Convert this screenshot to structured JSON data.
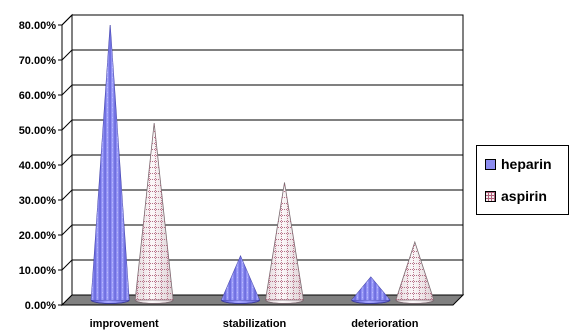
{
  "chart_data": {
    "type": "bar",
    "style": "3d-cone",
    "categories": [
      "improvement",
      "stabilization",
      "deterioration"
    ],
    "series": [
      {
        "name": "heparin",
        "values": [
          0.78,
          0.12,
          0.06
        ],
        "color": "#8c8cf0"
      },
      {
        "name": "aspirin",
        "values": [
          0.5,
          0.33,
          0.16
        ],
        "color": "#f2eaee",
        "pattern": "dotted-grid",
        "pattern_color": "#b0607a"
      }
    ],
    "y_ticks": [
      "0.00%",
      "10.00%",
      "20.00%",
      "30.00%",
      "40.00%",
      "50.00%",
      "60.00%",
      "70.00%",
      "80.00%"
    ],
    "ylim": [
      0,
      0.8
    ],
    "grid": true,
    "legend_position": "right",
    "title": "",
    "xlabel": "",
    "ylabel": ""
  }
}
